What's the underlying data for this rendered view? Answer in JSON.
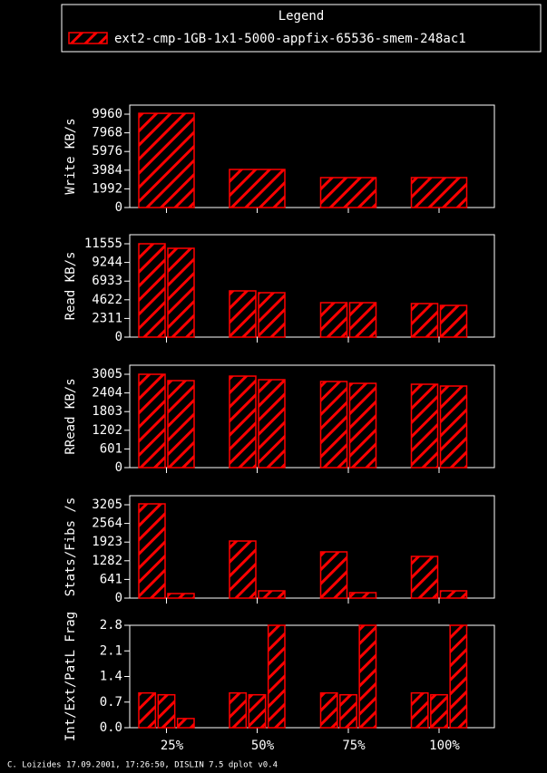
{
  "legend": {
    "title": "Legend",
    "entries": [
      {
        "name": "ext2-cmp-1GB-1x1-5000-appfix-65536-smem-248ac1",
        "color": "#ff0000"
      }
    ]
  },
  "chart_data": [
    {
      "type": "bar",
      "ylabel": "Write KB/s",
      "ylim": [
        0,
        10926
      ],
      "yticks": [
        0,
        1992,
        3984,
        5976,
        7968,
        9960
      ],
      "series": [
        {
          "values": [
            10050,
            4061,
            3191,
            3191
          ]
        }
      ]
    },
    {
      "type": "bar",
      "ylabel": "Read KB/s",
      "ylim": [
        0,
        12677
      ],
      "yticks": [
        0,
        2311,
        4622,
        6933,
        9244,
        11555
      ],
      "series": [
        {
          "values": [
            11555,
            5723,
            4263,
            4151
          ]
        },
        {
          "values": [
            10994,
            5497,
            4263,
            3926
          ]
        }
      ]
    },
    {
      "type": "bar",
      "ylabel": "RRead KB/s",
      "ylim": [
        0,
        3297
      ],
      "yticks": [
        0,
        601,
        1202,
        1803,
        2404,
        3005
      ],
      "series": [
        {
          "values": [
            3005,
            2946,
            2772,
            2684
          ]
        },
        {
          "values": [
            2801,
            2830,
            2713,
            2626
          ]
        }
      ]
    },
    {
      "type": "bar",
      "ylabel": "Stats/Fibs /s",
      "ylim": [
        0,
        3516
      ],
      "yticks": [
        0,
        641,
        1282,
        1923,
        2564,
        3205
      ],
      "series": [
        {
          "values": [
            3236,
            1960,
            1587,
            1431
          ]
        },
        {
          "values": [
            156,
            249,
            187,
            249
          ]
        }
      ]
    },
    {
      "type": "bar",
      "ylabel": "Int/Ext/PatL Frag",
      "ylim": [
        0,
        2.8
      ],
      "yticks": [
        {
          "value": 0,
          "label": "0.0"
        },
        0.7,
        1.4,
        2.1,
        2.8
      ],
      "categories": [
        "25%",
        "50%",
        "75%",
        "100%"
      ],
      "series": [
        {
          "values": [
            0.95,
            0.95,
            0.95,
            0.95
          ]
        },
        {
          "values": [
            0.9,
            0.9,
            0.9,
            0.9
          ]
        },
        {
          "values": [
            0.25,
            2.8,
            2.8,
            2.8
          ]
        }
      ]
    }
  ],
  "footer": "C. Loizides 17.09.2001, 17:26:50, DISLIN 7.5 dplot v0.4"
}
